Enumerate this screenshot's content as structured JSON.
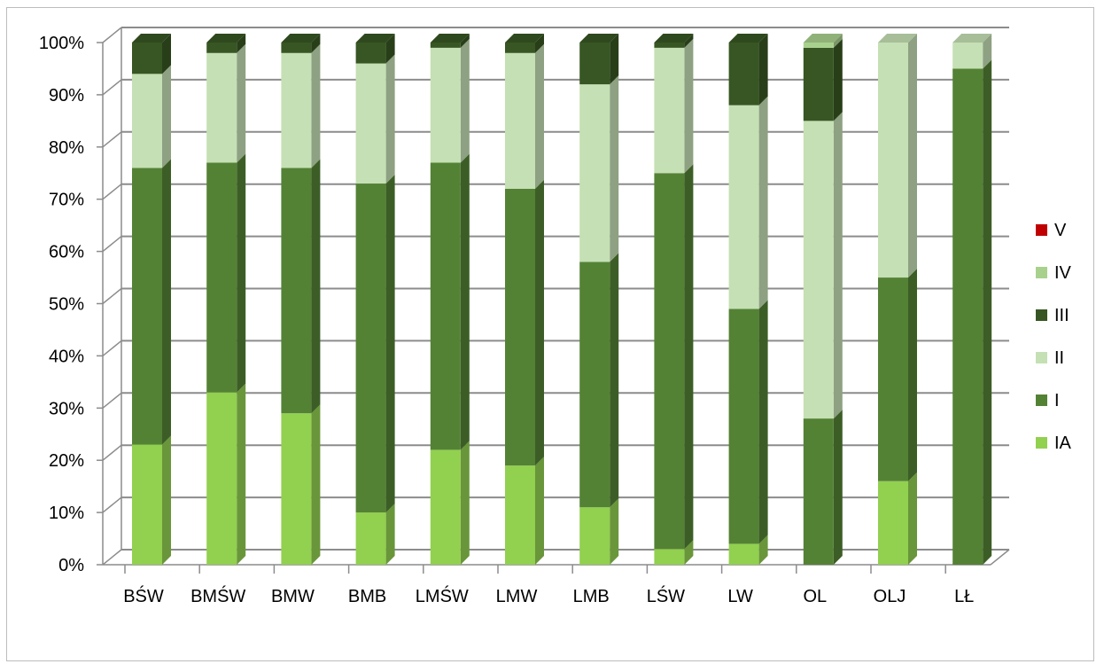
{
  "chart_data": {
    "type": "bar",
    "stacked": true,
    "percent": true,
    "three_d": true,
    "categories": [
      "BŚW",
      "BMŚW",
      "BMW",
      "BMB",
      "LMŚW",
      "LMW",
      "LMB",
      "LŚW",
      "LW",
      "OL",
      "OLJ",
      "LŁ"
    ],
    "yticks": [
      "0%",
      "10%",
      "20%",
      "30%",
      "40%",
      "50%",
      "60%",
      "70%",
      "80%",
      "90%",
      "100%"
    ],
    "ylim": [
      0,
      100
    ],
    "grid": true,
    "legend_position": "right",
    "series": [
      {
        "name": "IA",
        "color": "#92d050",
        "values": [
          23,
          33,
          29,
          10,
          22,
          19,
          11,
          3,
          4,
          0,
          16,
          0
        ]
      },
      {
        "name": "I",
        "color": "#548235",
        "values": [
          53,
          44,
          47,
          63,
          55,
          53,
          47,
          72,
          45,
          28,
          39,
          95
        ]
      },
      {
        "name": "II",
        "color": "#c5e0b4",
        "values": [
          18,
          21,
          22,
          23,
          22,
          26,
          34,
          24,
          39,
          57,
          45,
          5
        ]
      },
      {
        "name": "III",
        "color": "#375623",
        "values": [
          6,
          2,
          2,
          4,
          1,
          2,
          8,
          1,
          12,
          14,
          0,
          0
        ]
      },
      {
        "name": "IV",
        "color": "#a9d18e",
        "values": [
          0,
          0,
          0,
          0,
          0,
          0,
          0,
          0,
          0,
          1,
          0,
          0
        ]
      },
      {
        "name": "V",
        "color": "#c00000",
        "values": [
          0,
          0,
          0,
          0,
          0,
          0,
          0,
          0,
          0,
          0,
          0,
          0
        ]
      }
    ]
  }
}
